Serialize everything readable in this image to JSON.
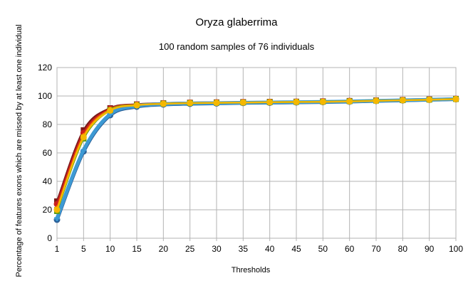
{
  "chart_data": {
    "type": "line",
    "title": "Oryza glaberrima",
    "subtitle": "100 random samples of 76 individuals",
    "xlabel": "Thresholds",
    "ylabel": "Percentage of features exons which are missed by at least one individual",
    "categories": [
      "1",
      "5",
      "10",
      "15",
      "20",
      "25",
      "30",
      "35",
      "40",
      "45",
      "50",
      "60",
      "70",
      "80",
      "90",
      "100"
    ],
    "ylim": [
      0,
      120
    ],
    "yticks": [
      0,
      20,
      40,
      60,
      80,
      100,
      120
    ],
    "grid": true,
    "legend": "none",
    "series": [
      {
        "color": "#7b1a1a",
        "values": [
          26,
          76,
          91.5,
          94.2,
          95.0,
          95.4,
          95.6,
          95.8,
          96.0,
          96.1,
          96.3,
          96.6,
          97.0,
          97.3,
          97.7,
          98.1
        ]
      },
      {
        "color": "#c9211e",
        "values": [
          24,
          74,
          91.0,
          94.0,
          94.9,
          95.3,
          95.5,
          95.7,
          95.9,
          96.0,
          96.2,
          96.5,
          96.9,
          97.2,
          97.6,
          98.0
        ]
      },
      {
        "color": "#ff6600",
        "values": [
          21,
          72,
          90.5,
          93.8,
          94.8,
          95.2,
          95.4,
          95.6,
          95.8,
          95.9,
          96.1,
          96.4,
          96.8,
          97.1,
          97.5,
          97.9
        ]
      },
      {
        "color": "#c6b800",
        "values": [
          20,
          71,
          90.2,
          93.7,
          94.7,
          95.1,
          95.3,
          95.5,
          95.7,
          95.8,
          96.0,
          96.3,
          96.7,
          97.0,
          97.4,
          97.8
        ]
      },
      {
        "color": "#2a6099",
        "values": [
          13,
          61,
          86.5,
          92.5,
          94.0,
          94.5,
          94.8,
          95.1,
          95.3,
          95.5,
          95.7,
          96.0,
          96.5,
          96.9,
          97.3,
          97.7
        ]
      },
      {
        "color": "#3d9ad4",
        "values": [
          14,
          62,
          87.2,
          93.0,
          94.3,
          94.8,
          95.0,
          95.3,
          95.5,
          95.7,
          95.9,
          96.2,
          96.6,
          97.0,
          97.4,
          97.8
        ]
      },
      {
        "color": "#579d1c",
        "values": [
          19,
          70,
          90.0,
          93.6,
          94.6,
          95.0,
          95.2,
          95.4,
          95.6,
          95.8,
          96.0,
          96.3,
          96.7,
          97.0,
          97.4,
          97.9
        ]
      },
      {
        "color": "#f5b800",
        "values": [
          20,
          71,
          89.8,
          93.5,
          94.5,
          95.0,
          95.2,
          95.4,
          95.6,
          95.8,
          95.9,
          96.2,
          96.6,
          97.0,
          97.4,
          97.8
        ]
      }
    ]
  }
}
